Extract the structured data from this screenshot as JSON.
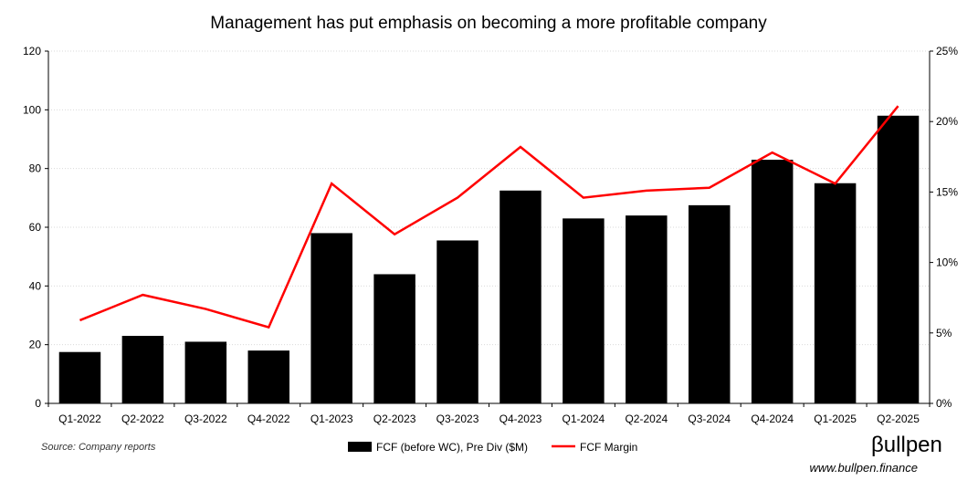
{
  "chart_data": {
    "type": "bar",
    "title": "Management has put emphasis on becoming a more profitable company",
    "categories": [
      "Q1-2022",
      "Q2-2022",
      "Q3-2022",
      "Q4-2022",
      "Q1-2023",
      "Q2-2023",
      "Q3-2023",
      "Q4-2023",
      "Q1-2024",
      "Q2-2024",
      "Q3-2024",
      "Q4-2024",
      "Q1-2025",
      "Q2-2025"
    ],
    "series": [
      {
        "name": "FCF (before WC), Pre Div ($M)",
        "type": "bar",
        "axis": "left",
        "color": "#000000",
        "values": [
          17.5,
          23,
          21,
          18,
          58,
          44,
          55.5,
          72.5,
          63,
          64,
          67.5,
          83,
          75,
          98
        ]
      },
      {
        "name": "FCF Margin",
        "type": "line",
        "axis": "right",
        "color": "#ff0000",
        "values": [
          5.9,
          7.7,
          6.7,
          5.4,
          15.6,
          12.0,
          14.6,
          18.2,
          14.6,
          15.1,
          15.3,
          17.8,
          15.6,
          21.1
        ]
      }
    ],
    "ylim_left": [
      0,
      120
    ],
    "yticks_left": [
      "0",
      "20",
      "40",
      "60",
      "80",
      "100",
      "120"
    ],
    "ylim_right": [
      0,
      25
    ],
    "yticks_right": [
      "0%",
      "5%",
      "10%",
      "15%",
      "20%",
      "25%"
    ],
    "grid": true,
    "legend_position": "bottom-center"
  },
  "footer": {
    "source": "Source: Company reports",
    "brand": "βullpen",
    "url": "www.bullpen.finance"
  }
}
